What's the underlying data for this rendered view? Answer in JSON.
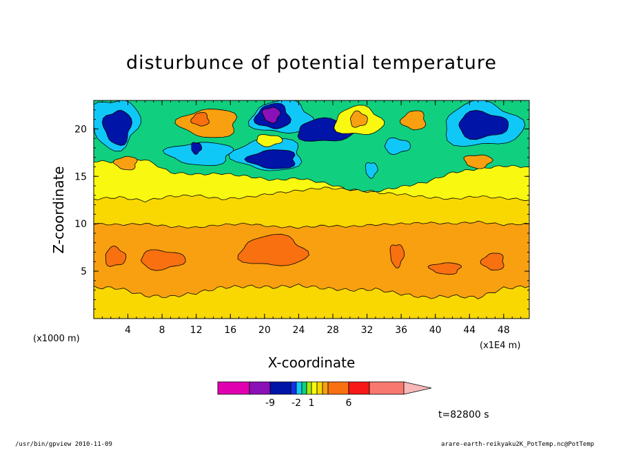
{
  "footer": {
    "left": "/usr/bin/gpview  2010-11-09",
    "right": "arare-earth-reikyaku2K_PotTemp.nc@PotTemp"
  },
  "time_label": "t=82800 s",
  "chart_data": {
    "type": "heatmap",
    "title": "disturbunce of potential temperature",
    "xlabel": "X-coordinate",
    "ylabel": "Z-coordinate",
    "x_unit": "(x1E4 m)",
    "y_unit": "(x1000 m)",
    "xlim": [
      0,
      51
    ],
    "ylim": [
      0,
      23
    ],
    "x_ticks": [
      4,
      8,
      12,
      16,
      20,
      24,
      28,
      32,
      36,
      40,
      44,
      48
    ],
    "y_ticks": [
      5,
      10,
      15,
      20
    ],
    "colorbar": {
      "colors": [
        "#e000b0",
        "#8a10b8",
        "#0014a8",
        "#1030e8",
        "#10c8f8",
        "#10d080",
        "#a8e810",
        "#f8f810",
        "#f8d800",
        "#f8a010",
        "#f87010",
        "#f81818",
        "#f87870",
        "#f8b8b8"
      ],
      "tick_labels": [
        "-9",
        "-2",
        "1",
        "6"
      ]
    },
    "regions": [
      {
        "level": "yellow",
        "shape": "band",
        "z_top": [
          12.6,
          12.8,
          12.4,
          12.9,
          13.0,
          12.6,
          12.8,
          13.2,
          13.5,
          13.8,
          13.6,
          13.3,
          13.1,
          12.8,
          12.6,
          12.9,
          12.7,
          12.5
        ]
      },
      {
        "level": "green",
        "shape": "band",
        "z_top": [
          16.6,
          16.5,
          16.8,
          15.4,
          15.2,
          15.3,
          15.0,
          14.6,
          14.8,
          14.3,
          13.6,
          13.4,
          13.9,
          14.4,
          15.4,
          15.8,
          16.1,
          16.0
        ]
      },
      {
        "level": "orange",
        "shape": "band_between",
        "z_top": [
          10.0,
          9.9,
          10.0,
          9.7,
          9.6,
          9.9,
          10.0,
          9.7,
          9.6,
          9.8,
          9.7,
          9.9,
          10.0,
          10.1,
          10.0,
          10.2,
          9.9,
          10.0
        ],
        "z_bot": [
          3.3,
          3.2,
          2.4,
          2.3,
          2.7,
          3.3,
          3.4,
          3.3,
          3.5,
          3.2,
          3.0,
          3.1,
          2.6,
          2.2,
          2.4,
          2.2,
          3.2,
          3.4
        ]
      },
      {
        "level": "cyan",
        "shape": "blob",
        "cx": 2.5,
        "cz": 20.6,
        "rx": 2.8,
        "rz": 2.6
      },
      {
        "level": "cyan",
        "shape": "blob",
        "cx": 12.5,
        "cz": 17.4,
        "rx": 3.8,
        "rz": 1.2
      },
      {
        "level": "cyan",
        "shape": "blob",
        "cx": 20.5,
        "cz": 17.3,
        "rx": 4.0,
        "rz": 1.7
      },
      {
        "level": "cyan",
        "shape": "blob",
        "cx": 22.0,
        "cz": 21.2,
        "rx": 3.6,
        "rz": 1.7
      },
      {
        "level": "cyan",
        "shape": "blob",
        "cx": 45.5,
        "cz": 20.4,
        "rx": 4.6,
        "rz": 2.3
      },
      {
        "level": "cyan",
        "shape": "blob",
        "cx": 35.5,
        "cz": 18.2,
        "rx": 1.5,
        "rz": 0.8
      },
      {
        "level": "cyan",
        "shape": "blob",
        "cx": 32.5,
        "cz": 15.7,
        "rx": 0.7,
        "rz": 0.8
      },
      {
        "level": "blue",
        "shape": "blob",
        "cx": 2.8,
        "cz": 20.2,
        "rx": 1.6,
        "rz": 1.8
      },
      {
        "level": "blue",
        "shape": "blob",
        "cx": 21.0,
        "cz": 16.8,
        "rx": 2.8,
        "rz": 1.0
      },
      {
        "level": "blue",
        "shape": "blob",
        "cx": 21.0,
        "cz": 21.3,
        "rx": 2.0,
        "rz": 1.3
      },
      {
        "level": "blue",
        "shape": "blob",
        "cx": 27.0,
        "cz": 19.8,
        "rx": 3.2,
        "rz": 1.2
      },
      {
        "level": "blue",
        "shape": "blob",
        "cx": 45.5,
        "cz": 20.4,
        "rx": 2.9,
        "rz": 1.4
      },
      {
        "level": "blue",
        "shape": "blob",
        "cx": 12.0,
        "cz": 18.0,
        "rx": 0.6,
        "rz": 0.6
      },
      {
        "level": "purple",
        "shape": "blob",
        "cx": 20.8,
        "cz": 21.5,
        "rx": 1.0,
        "rz": 0.8
      },
      {
        "level": "orange",
        "shape": "blob",
        "cx": 13.5,
        "cz": 20.6,
        "rx": 3.4,
        "rz": 1.5
      },
      {
        "level": "dorange",
        "shape": "blob",
        "cx": 12.5,
        "cz": 21.0,
        "rx": 1.0,
        "rz": 0.7
      },
      {
        "level": "yellow",
        "shape": "blob",
        "cx": 31.0,
        "cz": 20.8,
        "rx": 2.8,
        "rz": 1.5
      },
      {
        "level": "orange",
        "shape": "blob",
        "cx": 31.0,
        "cz": 21.0,
        "rx": 1.0,
        "rz": 0.8
      },
      {
        "level": "yellow",
        "shape": "blob",
        "cx": 20.5,
        "cz": 18.8,
        "rx": 1.5,
        "rz": 0.6
      },
      {
        "level": "orange",
        "shape": "blob",
        "cx": 45.0,
        "cz": 16.6,
        "rx": 1.6,
        "rz": 0.7
      },
      {
        "level": "orange",
        "shape": "blob",
        "cx": 3.8,
        "cz": 16.4,
        "rx": 1.3,
        "rz": 0.7
      },
      {
        "level": "orange",
        "shape": "blob",
        "cx": 37.5,
        "cz": 20.9,
        "rx": 1.4,
        "rz": 1.0
      },
      {
        "level": "dorange",
        "shape": "blob",
        "cx": 21.0,
        "cz": 7.1,
        "rx": 3.9,
        "rz": 1.6
      },
      {
        "level": "dorange",
        "shape": "blob",
        "cx": 2.5,
        "cz": 6.5,
        "rx": 1.2,
        "rz": 1.0
      },
      {
        "level": "dorange",
        "shape": "blob",
        "cx": 8.0,
        "cz": 6.2,
        "rx": 2.6,
        "rz": 1.0
      },
      {
        "level": "dorange",
        "shape": "blob",
        "cx": 35.5,
        "cz": 6.7,
        "rx": 0.8,
        "rz": 1.2
      },
      {
        "level": "dorange",
        "shape": "blob",
        "cx": 41.2,
        "cz": 5.3,
        "rx": 1.8,
        "rz": 0.6
      },
      {
        "level": "dorange",
        "shape": "blob",
        "cx": 46.8,
        "cz": 6.0,
        "rx": 1.3,
        "rz": 0.9
      }
    ]
  }
}
